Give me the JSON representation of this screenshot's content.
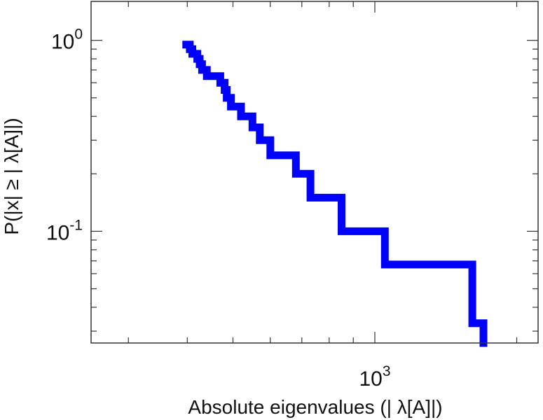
{
  "chart_data": {
    "type": "line",
    "title": "",
    "xlabel": "Absolute eigenvalues (|     λ[A]|)",
    "ylabel": "P(|x|  ≥ | λ[A]|)",
    "x_scale": "log",
    "y_scale": "log",
    "xlim": [
      250,
      2220
    ],
    "ylim": [
      0.026,
      1.6
    ],
    "grid": false,
    "x_ticks": [
      {
        "value": 1000,
        "base": "10",
        "exp": "3"
      }
    ],
    "y_ticks": [
      {
        "value": 1.0,
        "base": "10",
        "exp": "0"
      },
      {
        "value": 0.1,
        "base": "10",
        "exp": "-1"
      }
    ],
    "series": [
      {
        "color": "#0000ff",
        "x": [
          398,
          405,
          410,
          420,
          425,
          430,
          440,
          470,
          480,
          485,
          495,
          520,
          550,
          570,
          600,
          680,
          730,
          850,
          1050,
          1610,
          1700
        ],
        "y": [
          0.95,
          0.9,
          0.85,
          0.8,
          0.75,
          0.7,
          0.65,
          0.6,
          0.55,
          0.5,
          0.45,
          0.4,
          0.35,
          0.3,
          0.25,
          0.2,
          0.15,
          0.1,
          0.067,
          0.033,
          0.026
        ]
      }
    ]
  }
}
